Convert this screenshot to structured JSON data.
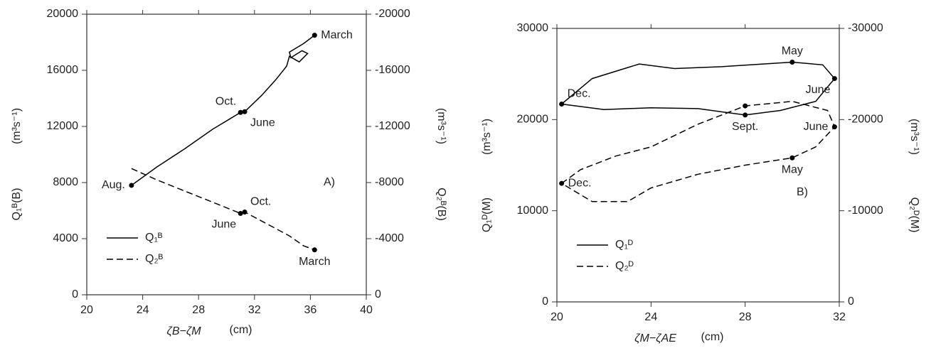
{
  "chart_data": [
    {
      "type": "line",
      "panel_label": "A)",
      "xlabel": "ζB−ζM",
      "xunit": "(cm)",
      "ylabel": "Q₁ᴮ(B)",
      "yunit": "(m³s⁻¹)",
      "y2label": "Q₂ᴮ(B)",
      "y2unit": "(m³s⁻¹)",
      "xlim": [
        20,
        40
      ],
      "xticks": [
        20,
        24,
        28,
        32,
        36,
        40
      ],
      "ylim": [
        0,
        20000
      ],
      "yticks": [
        0,
        4000,
        8000,
        12000,
        16000,
        20000
      ],
      "y2lim": [
        0,
        -20000
      ],
      "y2ticks": [
        0,
        -4000,
        -8000,
        -12000,
        -16000,
        -20000
      ],
      "legend": "lower left",
      "series": [
        {
          "name": "Q₁ᴮ",
          "color": "#000000",
          "dash": false,
          "x": [
            23.2,
            25,
            27,
            29,
            31,
            31.3,
            32.5,
            33.5,
            34.3,
            34.5,
            35.2,
            35.8,
            35.4,
            34.6,
            34.5,
            35.5,
            36.3
          ],
          "values": [
            7800,
            9100,
            10400,
            11800,
            13000,
            13050,
            14200,
            15300,
            16300,
            17000,
            16600,
            17200,
            17400,
            16900,
            17300,
            17900,
            18500
          ]
        },
        {
          "name": "Q₂ᴮ",
          "color": "#000000",
          "dash": true,
          "axis": "y2",
          "x": [
            23.2,
            25,
            27,
            29,
            31,
            31.3,
            33,
            34.5,
            35.5,
            36.3
          ],
          "values": [
            -9000,
            -8200,
            -7400,
            -6600,
            -5800,
            -5900,
            -5000,
            -4200,
            -3500,
            -3200
          ]
        }
      ],
      "annotations": [
        {
          "text": "March",
          "series": 0,
          "x": 36.3,
          "y": 18500,
          "position": "right"
        },
        {
          "text": "Oct.",
          "series": 0,
          "x": 31,
          "y": 13000,
          "position": "above-left"
        },
        {
          "text": "June",
          "series": 0,
          "x": 31.3,
          "y": 13050,
          "position": "below-right"
        },
        {
          "text": "Aug.",
          "series": 0,
          "x": 23.2,
          "y": 7800,
          "position": "left"
        },
        {
          "text": "Oct.",
          "series": 1,
          "x": 31.3,
          "y": -5900,
          "position": "above-right"
        },
        {
          "text": "June",
          "series": 1,
          "x": 31,
          "y": -5800,
          "position": "below-left"
        },
        {
          "text": "March",
          "series": 1,
          "x": 36.3,
          "y": -3200,
          "position": "below"
        }
      ]
    },
    {
      "type": "line",
      "panel_label": "B)",
      "xlabel": "ζM−ζAE",
      "xunit": "(cm)",
      "ylabel": "Q₁ᴰ(M)",
      "yunit": "(m³s⁻¹)",
      "y2label": "Q₂ᴰ(M)",
      "y2unit": "(m³s⁻¹)",
      "xlim": [
        20,
        32
      ],
      "xticks": [
        20,
        24,
        28,
        32
      ],
      "ylim": [
        0,
        30000
      ],
      "yticks": [
        0,
        10000,
        20000,
        30000
      ],
      "y2lim": [
        0,
        -30000
      ],
      "y2ticks": [
        0,
        -10000,
        -20000,
        -30000
      ],
      "legend": "lower left",
      "series": [
        {
          "name": "Q₁ᴰ",
          "color": "#000000",
          "dash": false,
          "x": [
            20.2,
            21.5,
            23.5,
            25,
            27,
            30,
            31.3,
            31.8,
            31,
            29.5,
            28,
            26,
            24,
            22,
            20.2
          ],
          "values": [
            21700,
            24500,
            26100,
            25600,
            25800,
            26300,
            26000,
            24500,
            22000,
            21000,
            20500,
            21200,
            21300,
            21100,
            21700
          ]
        },
        {
          "name": "Q₂ᴰ",
          "color": "#000000",
          "dash": true,
          "axis": "y2",
          "x": [
            20.2,
            21,
            22.5,
            24,
            26,
            28,
            30,
            31.5,
            31.8,
            31,
            30,
            28,
            26,
            24,
            23,
            21.5,
            20.2
          ],
          "values": [
            -13000,
            -14500,
            -16000,
            -17000,
            -19500,
            -21500,
            -22000,
            -21000,
            -19200,
            -17000,
            -15800,
            -15000,
            -14000,
            -12500,
            -11000,
            -11000,
            -13000
          ]
        }
      ],
      "annotations": [
        {
          "text": "Dec.",
          "series": 0,
          "x": 20.2,
          "y": 21700,
          "position": "above-right"
        },
        {
          "text": "May",
          "series": 0,
          "x": 30,
          "y": 26300,
          "position": "above"
        },
        {
          "text": "June",
          "series": 0,
          "x": 31.8,
          "y": 24500,
          "position": "below-left"
        },
        {
          "text": "Sept.",
          "series": 0,
          "x": 28,
          "y": 20500,
          "position": "below"
        },
        {
          "text": "Dec.",
          "series": 1,
          "x": 20.2,
          "y": -13000,
          "position": "right"
        },
        {
          "text": "May",
          "series": 1,
          "x": 30,
          "y": -15800,
          "position": "below"
        },
        {
          "text": "June",
          "series": 1,
          "x": 31.8,
          "y": -19200,
          "position": "left"
        },
        {
          "text": "Sept.",
          "series": 1,
          "x": 28,
          "y": -21500,
          "position": "none"
        }
      ]
    }
  ]
}
